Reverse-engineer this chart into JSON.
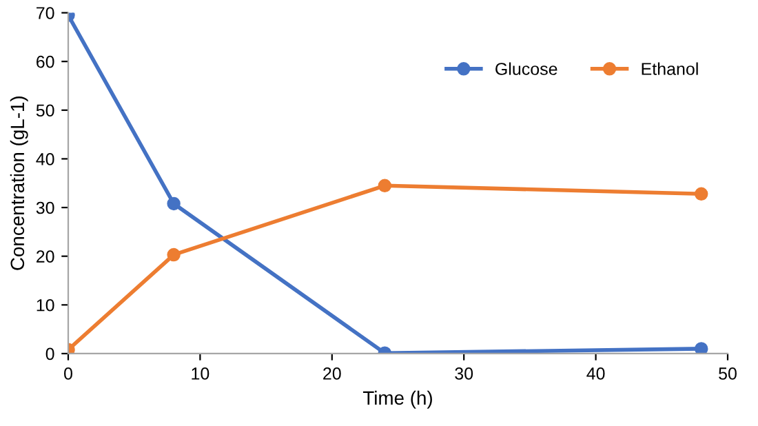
{
  "chart_data": {
    "type": "line",
    "xlabel": "Time (h)",
    "ylabel": "Concentration (gL-1)",
    "x": [
      0,
      8,
      24,
      48
    ],
    "xlim": [
      0,
      50
    ],
    "xticks": [
      0,
      10,
      20,
      30,
      40,
      50
    ],
    "ylim": [
      0,
      70
    ],
    "yticks": [
      0,
      10,
      20,
      30,
      40,
      50,
      60,
      70
    ],
    "grid": false,
    "legend": "top right",
    "marker": "circle",
    "line_style": "solid",
    "series": [
      {
        "name": "Glucose",
        "color": "#4472c4",
        "values": [
          69.5,
          30.8,
          0.1,
          1.0
        ]
      },
      {
        "name": "Ethanol",
        "color": "#ed7d31",
        "values": [
          0.8,
          20.3,
          34.5,
          32.8
        ]
      }
    ]
  }
}
